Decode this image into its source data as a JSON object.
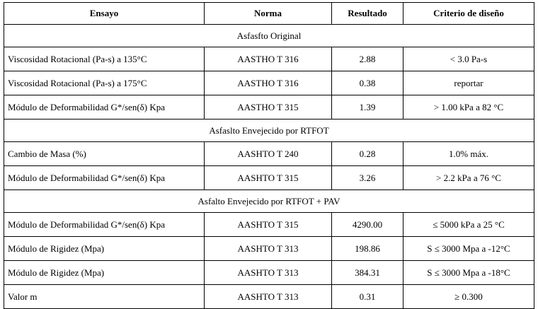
{
  "table": {
    "headers": [
      "Ensayo",
      "Norma",
      "Resultado",
      "Criterio de diseño"
    ],
    "sections": [
      {
        "title": "Asfasfto Original",
        "rows": [
          [
            "Viscosidad Rotacional (Pa-s) a 135°C",
            "AASTHO T 316",
            "2.88",
            "< 3.0 Pa-s"
          ],
          [
            "Viscosidad Rotacional (Pa-s) a 175°C",
            "AASTHO T 316",
            "0.38",
            "reportar"
          ],
          [
            "Módulo de Deformabilidad G*/sen(δ) Kpa",
            "AASTHO T 315",
            "1.39",
            "> 1.00 kPa a 82 °C"
          ]
        ]
      },
      {
        "title": "Asfaslto Envejecido por RTFOT",
        "rows": [
          [
            "Cambio de Masa (%)",
            "AASHTO T 240",
            "0.28",
            "1.0% máx."
          ],
          [
            "Módulo de Deformabilidad G*/sen(δ) Kpa",
            "AASHTO T 315",
            "3.26",
            "> 2.2 kPa a 76 °C"
          ]
        ]
      },
      {
        "title": "Asfalto Envejecido por RTFOT + PAV",
        "rows": [
          [
            "Módulo de Deformabilidad G*/sen(δ) Kpa",
            "AASHTO T 315",
            "4290.00",
            "≤ 5000 kPa a 25 °C"
          ],
          [
            "Módulo de Rigidez (Mpa)",
            "AASHTO T 313",
            "198.86",
            "S ≤ 3000 Mpa a -12°C"
          ],
          [
            "Módulo de Rigidez (Mpa)",
            "AASHTO T 313",
            "384.31",
            "S ≤ 3000 Mpa a -18°C"
          ],
          [
            "Valor m",
            "AASHTO T 313",
            "0.31",
            "≥ 0.300"
          ]
        ]
      }
    ]
  }
}
